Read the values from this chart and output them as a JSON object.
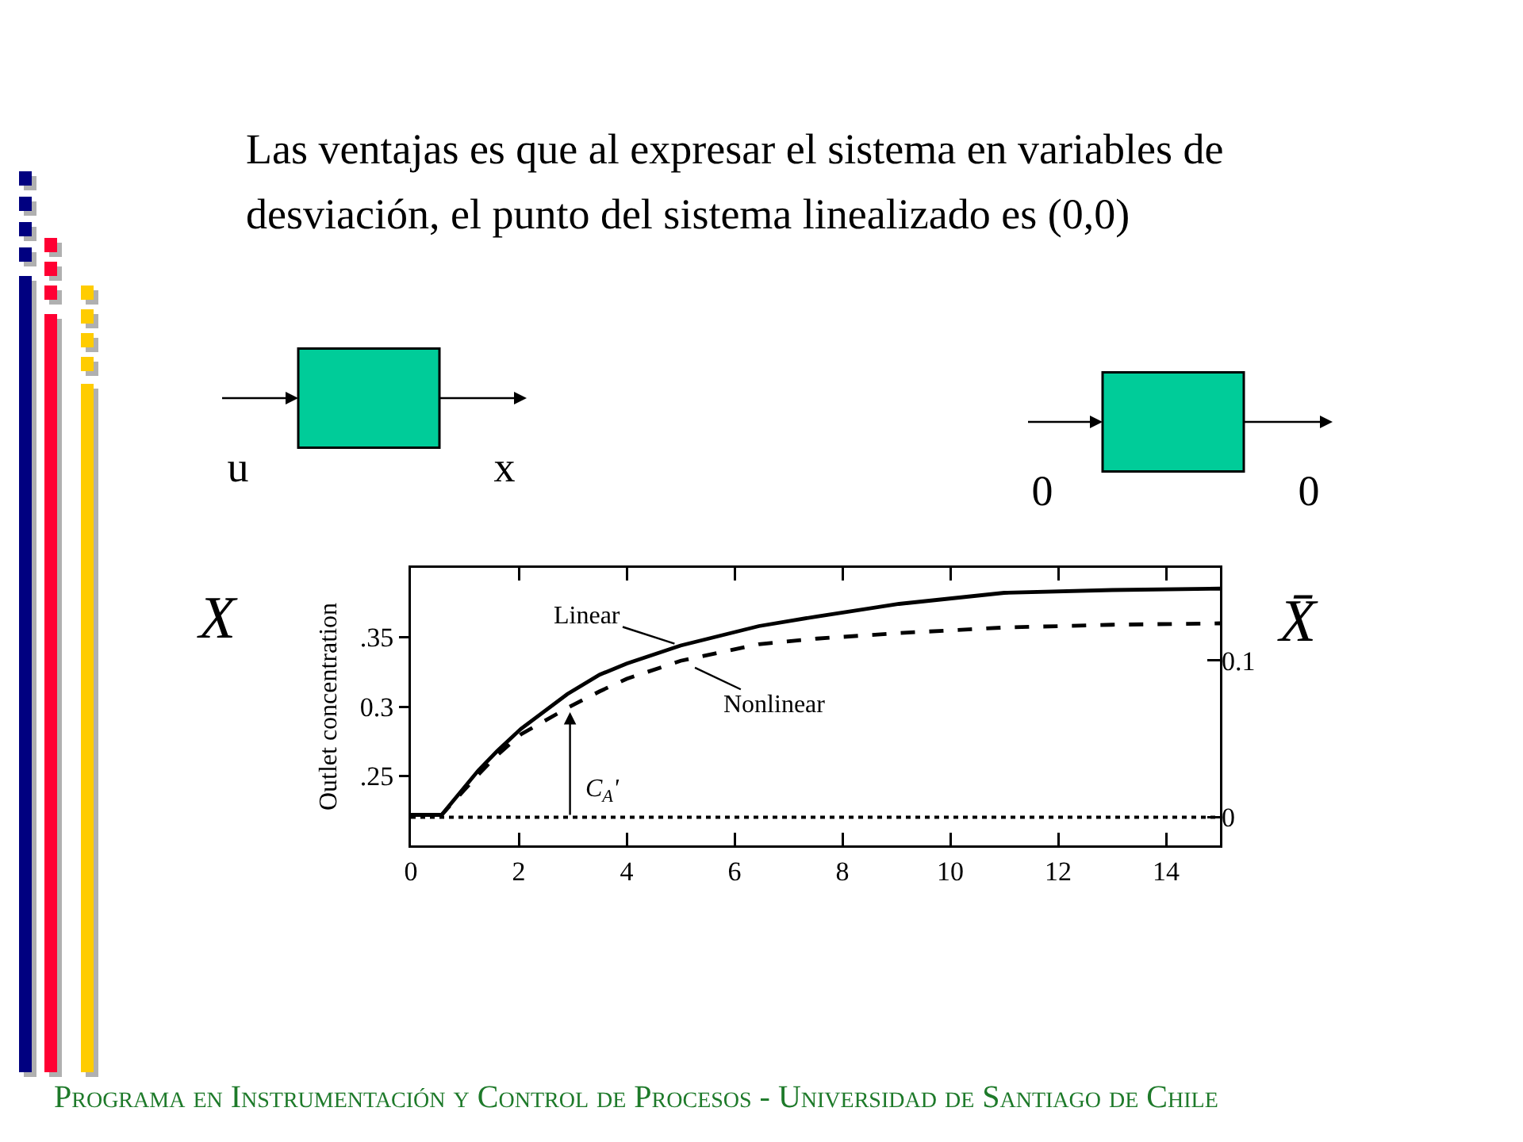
{
  "chart_data": {
    "type": "line",
    "title": "Las ventajas es que al expresar el sistema en variables de desviación, el punto del sistema linealizado es (0,0)",
    "ylabel": "Outlet concentration",
    "x": [
      0,
      0.57,
      1.25,
      1.6,
      2.04,
      2.9,
      3.5,
      4.0,
      5.0,
      6.45,
      7.53,
      9.05,
      11,
      13,
      15
    ],
    "series": [
      {
        "name": "Linear",
        "color": "#000000",
        "line_style": "solid",
        "values": [
          0.222,
          0.222,
          0.254,
          0.268,
          0.284,
          0.309,
          0.323,
          0.331,
          0.344,
          0.358,
          0.365,
          0.374,
          0.382,
          0.384,
          0.385
        ]
      },
      {
        "name": "Nonlinear",
        "color": "#000000",
        "line_style": "dashed",
        "values": [
          0.222,
          0.222,
          0.251,
          0.265,
          0.28,
          0.299,
          0.311,
          0.32,
          0.333,
          0.345,
          0.349,
          0.353,
          0.357,
          0.359,
          0.36
        ]
      }
    ],
    "xlim": [
      0,
      15
    ],
    "xticks": [
      0,
      2,
      4,
      6,
      8,
      10,
      12,
      14
    ],
    "ylim": [
      0.2,
      0.4
    ],
    "yticks": [
      {
        "value": 0.25,
        "label": ".25"
      },
      0.3,
      {
        "value": 0.35,
        "label": ".35"
      }
    ],
    "y2lim": [
      -0.018,
      0.159
    ],
    "y2ticks": [
      0,
      0.1
    ],
    "ref_lines": [
      {
        "axis": "y2",
        "value": 0,
        "line_style": "dotted",
        "color": "#000000"
      }
    ],
    "legend": "top left",
    "annotations": [
      "u",
      "x",
      "0",
      "0",
      "X",
      "X̄",
      "Programa en Instrumentación y Control de Procesos - Universidad de Santiago de Chile",
      {
        "text": "C$_{A}$'",
        "x": 2.95,
        "y": 0.296
      }
    ]
  }
}
